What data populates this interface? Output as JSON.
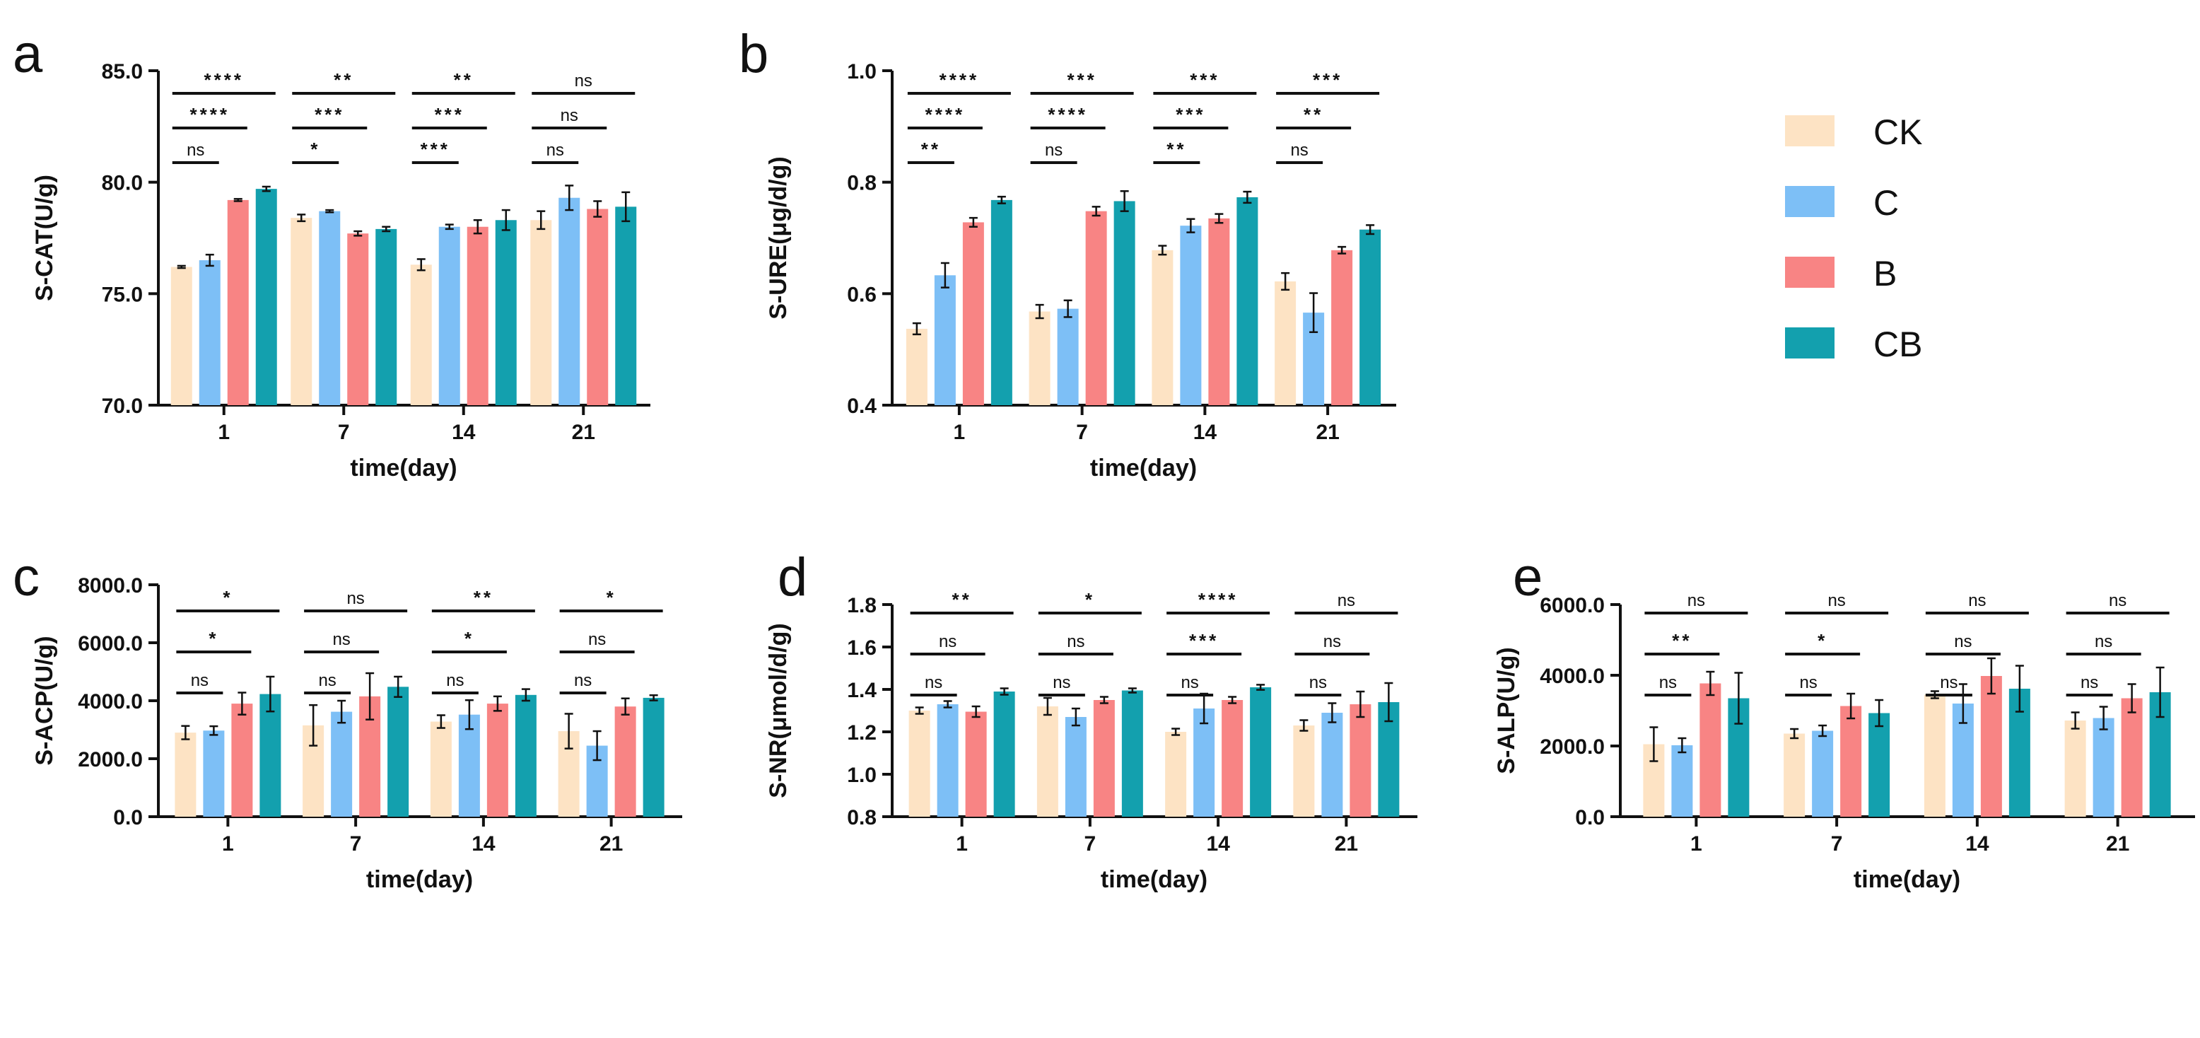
{
  "legend": {
    "items": [
      {
        "label": "CK",
        "color": "#FDE3C4"
      },
      {
        "label": "C",
        "color": "#7DBFF6"
      },
      {
        "label": "B",
        "color": "#F88484"
      },
      {
        "label": "CB",
        "color": "#13A0AE"
      }
    ]
  },
  "chart_data": [
    {
      "panel": "a",
      "type": "bar",
      "ylabel": "S-CAT(U/g)",
      "xlabel": "time(day)",
      "categories": [
        "1",
        "7",
        "14",
        "21"
      ],
      "ylim": [
        70,
        85
      ],
      "yticks": [
        70,
        75,
        80,
        85
      ],
      "ytick_labels": [
        "70.0",
        "75.0",
        "80.0",
        "85.0"
      ],
      "series": [
        {
          "name": "CK",
          "values": [
            76.2,
            78.4,
            76.3,
            78.3
          ],
          "errors": [
            0.05,
            0.15,
            0.25,
            0.4
          ]
        },
        {
          "name": "C",
          "values": [
            76.5,
            78.7,
            78.0,
            79.3
          ],
          "errors": [
            0.25,
            0.05,
            0.1,
            0.55
          ]
        },
        {
          "name": "B",
          "values": [
            79.2,
            77.7,
            78.0,
            78.8
          ],
          "errors": [
            0.05,
            0.1,
            0.3,
            0.35
          ]
        },
        {
          "name": "CB",
          "values": [
            79.7,
            77.9,
            78.3,
            78.9
          ],
          "errors": [
            0.1,
            0.1,
            0.45,
            0.65
          ]
        }
      ],
      "significance": [
        [
          {
            "label": "ns"
          },
          {
            "label": "****"
          },
          {
            "label": "****"
          }
        ],
        [
          {
            "label": "*"
          },
          {
            "label": "***"
          },
          {
            "label": "**"
          }
        ],
        [
          {
            "label": "***"
          },
          {
            "label": "***"
          },
          {
            "label": "**"
          }
        ],
        [
          {
            "label": "ns"
          },
          {
            "label": "ns"
          },
          {
            "label": "ns"
          }
        ]
      ]
    },
    {
      "panel": "b",
      "type": "bar",
      "ylabel": "S-URE(μg/d/g)",
      "xlabel": "time(day)",
      "categories": [
        "1",
        "7",
        "14",
        "21"
      ],
      "ylim": [
        0.4,
        1.0
      ],
      "yticks": [
        0.4,
        0.6,
        0.8,
        1.0
      ],
      "ytick_labels": [
        "0.4",
        "0.6",
        "0.8",
        "1.0"
      ],
      "series": [
        {
          "name": "CK",
          "values": [
            0.537,
            0.568,
            0.678,
            0.622
          ],
          "errors": [
            0.01,
            0.012,
            0.008,
            0.015
          ]
        },
        {
          "name": "C",
          "values": [
            0.633,
            0.573,
            0.722,
            0.566
          ],
          "errors": [
            0.022,
            0.015,
            0.012,
            0.035
          ]
        },
        {
          "name": "B",
          "values": [
            0.728,
            0.748,
            0.735,
            0.678
          ],
          "errors": [
            0.008,
            0.008,
            0.008,
            0.006
          ]
        },
        {
          "name": "CB",
          "values": [
            0.768,
            0.766,
            0.773,
            0.715
          ],
          "errors": [
            0.006,
            0.018,
            0.01,
            0.008
          ]
        }
      ],
      "significance": [
        [
          {
            "label": "**"
          },
          {
            "label": "****"
          },
          {
            "label": "****"
          }
        ],
        [
          {
            "label": "ns"
          },
          {
            "label": "****"
          },
          {
            "label": "***"
          }
        ],
        [
          {
            "label": "**"
          },
          {
            "label": "***"
          },
          {
            "label": "***"
          }
        ],
        [
          {
            "label": "ns"
          },
          {
            "label": "**"
          },
          {
            "label": "***"
          }
        ]
      ]
    },
    {
      "panel": "c",
      "type": "bar",
      "ylabel": "S-ACP(U/g)",
      "xlabel": "time(day)",
      "categories": [
        "1",
        "7",
        "14",
        "21"
      ],
      "ylim": [
        0,
        8000
      ],
      "yticks": [
        0,
        2000,
        4000,
        6000,
        8000
      ],
      "ytick_labels": [
        "0.0",
        "2000.0",
        "4000.0",
        "6000.0",
        "8000.0"
      ],
      "series": [
        {
          "name": "CK",
          "values": [
            2900,
            3150,
            3280,
            2950
          ],
          "errors": [
            230,
            700,
            220,
            600
          ]
        },
        {
          "name": "C",
          "values": [
            2970,
            3620,
            3520,
            2450
          ],
          "errors": [
            150,
            380,
            500,
            500
          ]
        },
        {
          "name": "B",
          "values": [
            3900,
            4150,
            3900,
            3800
          ],
          "errors": [
            380,
            800,
            250,
            280
          ]
        },
        {
          "name": "CB",
          "values": [
            4230,
            4480,
            4200,
            4100
          ],
          "errors": [
            600,
            350,
            200,
            90
          ]
        }
      ],
      "significance": [
        [
          {
            "label": "ns"
          },
          {
            "label": "*"
          },
          {
            "label": "*"
          }
        ],
        [
          {
            "label": "ns"
          },
          {
            "label": "ns"
          },
          {
            "label": "ns"
          }
        ],
        [
          {
            "label": "ns"
          },
          {
            "label": "*"
          },
          {
            "label": "**"
          }
        ],
        [
          {
            "label": "ns"
          },
          {
            "label": "ns"
          },
          {
            "label": "*"
          }
        ]
      ]
    },
    {
      "panel": "d",
      "type": "bar",
      "ylabel": "S-NR(μmol/d/g)",
      "xlabel": "time(day)",
      "categories": [
        "1",
        "7",
        "14",
        "21"
      ],
      "ylim": [
        0.8,
        1.8
      ],
      "yticks": [
        0.8,
        1.0,
        1.2,
        1.4,
        1.6,
        1.8
      ],
      "ytick_labels": [
        "0.8",
        "1.0",
        "1.2",
        "1.4",
        "1.6",
        "1.8"
      ],
      "series": [
        {
          "name": "CK",
          "values": [
            1.3,
            1.32,
            1.2,
            1.23
          ],
          "errors": [
            0.015,
            0.04,
            0.015,
            0.025
          ]
        },
        {
          "name": "C",
          "values": [
            1.33,
            1.27,
            1.31,
            1.29
          ],
          "errors": [
            0.015,
            0.04,
            0.07,
            0.045
          ]
        },
        {
          "name": "B",
          "values": [
            1.295,
            1.35,
            1.35,
            1.33
          ],
          "errors": [
            0.025,
            0.015,
            0.015,
            0.06
          ]
        },
        {
          "name": "CB",
          "values": [
            1.39,
            1.395,
            1.41,
            1.34
          ],
          "errors": [
            0.015,
            0.01,
            0.012,
            0.09
          ]
        }
      ],
      "significance": [
        [
          {
            "label": "ns"
          },
          {
            "label": "ns"
          },
          {
            "label": "**"
          }
        ],
        [
          {
            "label": "ns"
          },
          {
            "label": "ns"
          },
          {
            "label": "*"
          }
        ],
        [
          {
            "label": "ns"
          },
          {
            "label": "***"
          },
          {
            "label": "****"
          }
        ],
        [
          {
            "label": "ns"
          },
          {
            "label": "ns"
          },
          {
            "label": "ns"
          }
        ]
      ]
    },
    {
      "panel": "e",
      "type": "bar",
      "ylabel": "S-ALP(U/g)",
      "xlabel": "time(day)",
      "categories": [
        "1",
        "7",
        "14",
        "21"
      ],
      "ylim": [
        0,
        6000
      ],
      "yticks": [
        0,
        2000,
        4000,
        6000
      ],
      "ytick_labels": [
        "0.0",
        "2000.0",
        "4000.0",
        "6000.0"
      ],
      "series": [
        {
          "name": "CK",
          "values": [
            2050,
            2350,
            3450,
            2720
          ],
          "errors": [
            480,
            130,
            100,
            230
          ]
        },
        {
          "name": "C",
          "values": [
            2020,
            2430,
            3200,
            2790
          ],
          "errors": [
            200,
            150,
            550,
            320
          ]
        },
        {
          "name": "B",
          "values": [
            3770,
            3130,
            3980,
            3350
          ],
          "errors": [
            330,
            350,
            500,
            400
          ]
        },
        {
          "name": "CB",
          "values": [
            3350,
            2930,
            3620,
            3520
          ],
          "errors": [
            720,
            370,
            650,
            700
          ]
        }
      ],
      "significance": [
        [
          {
            "label": "ns"
          },
          {
            "label": "**"
          },
          {
            "label": "ns"
          }
        ],
        [
          {
            "label": "ns"
          },
          {
            "label": "*"
          },
          {
            "label": "ns"
          }
        ],
        [
          {
            "label": "ns"
          },
          {
            "label": "ns"
          },
          {
            "label": "ns"
          }
        ],
        [
          {
            "label": "ns"
          },
          {
            "label": "ns"
          },
          {
            "label": "ns"
          }
        ]
      ]
    }
  ]
}
